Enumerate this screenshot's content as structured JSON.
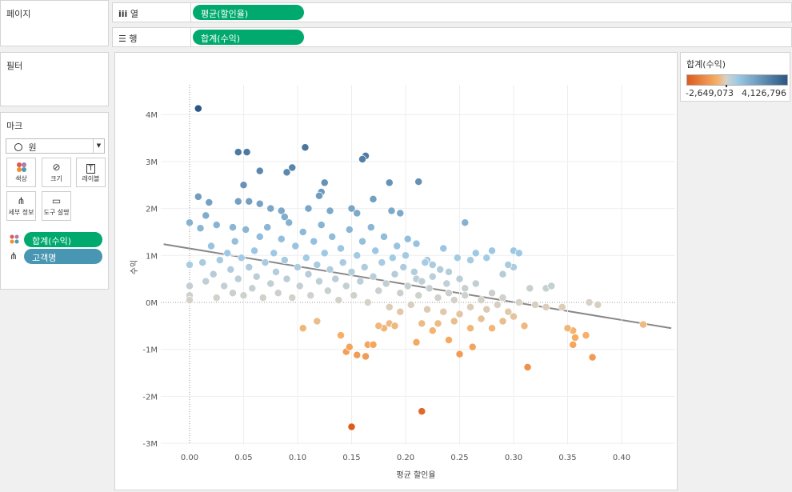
{
  "sidebar": {
    "pages_title": "페이지",
    "filters_title": "필터",
    "marks_title": "마크",
    "mark_type": "원",
    "mark_buttons": [
      {
        "label": "색상",
        "icon": "color-dots-icon"
      },
      {
        "label": "크기",
        "icon": "size-icon"
      },
      {
        "label": "레이블",
        "icon": "label-icon"
      },
      {
        "label": "세부 정보",
        "icon": "detail-icon"
      },
      {
        "label": "도구 설명",
        "icon": "tooltip-icon"
      }
    ],
    "mark_fields": [
      {
        "label": "합계(수익)",
        "icon": "color-dots-icon"
      },
      {
        "label": "고객명",
        "icon": "detail-icon"
      }
    ]
  },
  "shelves": {
    "columns_label": "열",
    "columns_pill": "평균(할인율)",
    "rows_label": "행",
    "rows_pill": "합계(수익)"
  },
  "legend": {
    "title": "합계(수익)",
    "min_label": "-2,649,073",
    "max_label": "4,126,796",
    "colors": {
      "negative": "#de5a1e",
      "mid_negative": "#f7b066",
      "zero": "#d6d2c8",
      "mid_positive": "#9fcae6",
      "positive": "#2a5783"
    }
  },
  "chart_data": {
    "type": "scatter",
    "xlabel": "평균 할인율",
    "ylabel": "수익",
    "xlim": [
      -0.025,
      0.445
    ],
    "ylim": [
      -3.1,
      4.5
    ],
    "x_ticks": [
      "0.00",
      "0.05",
      "0.10",
      "0.15",
      "0.20",
      "0.25",
      "0.30",
      "0.35",
      "0.40"
    ],
    "y_ticks": [
      "4M",
      "3M",
      "2M",
      "1M",
      "0M",
      "-1M",
      "-2M",
      "-3M"
    ],
    "y_unit": "M",
    "grid": true,
    "trend_line": {
      "x": [
        -0.024,
        0.446
      ],
      "y": [
        1.24,
        -0.55
      ]
    },
    "points": [
      [
        0.008,
        4.13
      ],
      [
        0.045,
        3.2
      ],
      [
        0.053,
        3.2
      ],
      [
        0.107,
        3.3
      ],
      [
        0.163,
        3.12
      ],
      [
        0.16,
        3.05
      ],
      [
        0.065,
        2.8
      ],
      [
        0.095,
        2.87
      ],
      [
        0.09,
        2.77
      ],
      [
        0.185,
        2.55
      ],
      [
        0.212,
        2.57
      ],
      [
        0.125,
        2.55
      ],
      [
        0.122,
        2.35
      ],
      [
        0.12,
        2.27
      ],
      [
        0.05,
        2.5
      ],
      [
        0.008,
        2.25
      ],
      [
        0.018,
        2.13
      ],
      [
        0.045,
        2.15
      ],
      [
        0.055,
        2.15
      ],
      [
        0.065,
        2.1
      ],
      [
        0.075,
        2.0
      ],
      [
        0.085,
        1.95
      ],
      [
        0.088,
        1.82
      ],
      [
        0.015,
        1.85
      ],
      [
        0.025,
        1.65
      ],
      [
        0.04,
        1.6
      ],
      [
        0.11,
        2.0
      ],
      [
        0.13,
        1.95
      ],
      [
        0.15,
        2.0
      ],
      [
        0.155,
        1.9
      ],
      [
        0.17,
        2.2
      ],
      [
        0.195,
        1.9
      ],
      [
        0.187,
        1.95
      ],
      [
        0.202,
        1.35
      ],
      [
        0.255,
        1.7
      ],
      [
        0.0,
        1.7
      ],
      [
        0.01,
        1.58
      ],
      [
        0.15,
        -2.65
      ],
      [
        0.215,
        -2.32
      ],
      [
        0.313,
        -1.38
      ],
      [
        0.373,
        -1.17
      ],
      [
        0.155,
        -1.12
      ],
      [
        0.163,
        -1.15
      ],
      [
        0.145,
        -1.05
      ],
      [
        0.148,
        -0.95
      ],
      [
        0.165,
        -0.9
      ],
      [
        0.17,
        -0.9
      ],
      [
        0.14,
        -0.7
      ],
      [
        0.105,
        -0.55
      ],
      [
        0.118,
        -0.4
      ],
      [
        0.21,
        -0.85
      ],
      [
        0.24,
        -0.8
      ],
      [
        0.25,
        -1.1
      ],
      [
        0.262,
        -0.95
      ],
      [
        0.355,
        -0.9
      ],
      [
        0.357,
        -0.75
      ],
      [
        0.367,
        -0.7
      ],
      [
        0.42,
        -0.47
      ],
      [
        0.355,
        -0.6
      ],
      [
        0.35,
        -0.55
      ],
      [
        0.31,
        -0.5
      ],
      [
        0.3,
        -0.3
      ],
      [
        0.28,
        -0.55
      ],
      [
        0.26,
        -0.55
      ],
      [
        0.23,
        -0.45
      ],
      [
        0.195,
        -0.2
      ],
      [
        0.18,
        -0.55
      ],
      [
        0.175,
        -0.5
      ],
      [
        0.185,
        -0.45
      ],
      [
        0.19,
        -0.5
      ],
      [
        0.215,
        -0.45
      ],
      [
        0.225,
        -0.6
      ],
      [
        0.245,
        -0.4
      ],
      [
        0.27,
        -0.35
      ],
      [
        0.29,
        -0.4
      ],
      [
        0.32,
        -0.05
      ],
      [
        0.345,
        -0.1
      ],
      [
        0.37,
        0.0
      ],
      [
        0.378,
        -0.05
      ],
      [
        0.33,
        -0.1
      ],
      [
        0.305,
        0.0
      ],
      [
        0.33,
        0.3
      ],
      [
        0.335,
        0.35
      ],
      [
        0.315,
        0.3
      ],
      [
        0.29,
        0.6
      ],
      [
        0.3,
        0.75
      ],
      [
        0.28,
        1.1
      ],
      [
        0.3,
        1.1
      ],
      [
        0.305,
        1.05
      ],
      [
        0.265,
        1.05
      ],
      [
        0.26,
        0.9
      ],
      [
        0.275,
        0.95
      ],
      [
        0.295,
        0.8
      ],
      [
        0.24,
        0.65
      ],
      [
        0.25,
        0.5
      ],
      [
        0.255,
        0.3
      ],
      [
        0.235,
        1.15
      ],
      [
        0.22,
        0.9
      ],
      [
        0.225,
        0.8
      ],
      [
        0.21,
        0.5
      ],
      [
        0.0,
        0.8
      ],
      [
        0.0,
        0.35
      ],
      [
        0.0,
        0.15
      ],
      [
        0.0,
        0.05
      ],
      [
        0.012,
        0.85
      ],
      [
        0.015,
        0.45
      ],
      [
        0.02,
        1.2
      ],
      [
        0.022,
        0.6
      ],
      [
        0.025,
        0.1
      ],
      [
        0.028,
        0.9
      ],
      [
        0.032,
        0.35
      ],
      [
        0.035,
        1.05
      ],
      [
        0.038,
        0.7
      ],
      [
        0.04,
        0.2
      ],
      [
        0.042,
        1.3
      ],
      [
        0.045,
        0.5
      ],
      [
        0.048,
        0.95
      ],
      [
        0.05,
        0.15
      ],
      [
        0.052,
        1.55
      ],
      [
        0.055,
        0.75
      ],
      [
        0.058,
        0.3
      ],
      [
        0.06,
        1.1
      ],
      [
        0.062,
        0.55
      ],
      [
        0.065,
        1.4
      ],
      [
        0.068,
        0.1
      ],
      [
        0.07,
        0.85
      ],
      [
        0.072,
        1.6
      ],
      [
        0.075,
        0.4
      ],
      [
        0.078,
        1.05
      ],
      [
        0.08,
        0.65
      ],
      [
        0.082,
        0.2
      ],
      [
        0.085,
        1.35
      ],
      [
        0.088,
        0.9
      ],
      [
        0.09,
        0.5
      ],
      [
        0.092,
        1.7
      ],
      [
        0.095,
        0.1
      ],
      [
        0.098,
        1.2
      ],
      [
        0.1,
        0.75
      ],
      [
        0.102,
        0.35
      ],
      [
        0.105,
        1.5
      ],
      [
        0.108,
        0.95
      ],
      [
        0.11,
        0.6
      ],
      [
        0.112,
        0.15
      ],
      [
        0.115,
        1.3
      ],
      [
        0.118,
        0.8
      ],
      [
        0.12,
        0.45
      ],
      [
        0.122,
        1.65
      ],
      [
        0.125,
        1.05
      ],
      [
        0.128,
        0.25
      ],
      [
        0.13,
        0.7
      ],
      [
        0.132,
        1.4
      ],
      [
        0.135,
        0.5
      ],
      [
        0.138,
        0.05
      ],
      [
        0.14,
        1.15
      ],
      [
        0.142,
        0.85
      ],
      [
        0.145,
        0.35
      ],
      [
        0.148,
        1.55
      ],
      [
        0.15,
        0.65
      ],
      [
        0.152,
        0.15
      ],
      [
        0.155,
        1.0
      ],
      [
        0.158,
        0.45
      ],
      [
        0.16,
        1.3
      ],
      [
        0.162,
        0.75
      ],
      [
        0.165,
        0.0
      ],
      [
        0.168,
        1.6
      ],
      [
        0.17,
        0.55
      ],
      [
        0.172,
        1.1
      ],
      [
        0.175,
        0.25
      ],
      [
        0.178,
        0.85
      ],
      [
        0.18,
        1.4
      ],
      [
        0.182,
        0.4
      ],
      [
        0.185,
        -0.1
      ],
      [
        0.188,
        0.95
      ],
      [
        0.19,
        0.6
      ],
      [
        0.192,
        1.2
      ],
      [
        0.195,
        0.2
      ],
      [
        0.198,
        0.75
      ],
      [
        0.2,
        1.0
      ],
      [
        0.202,
        0.35
      ],
      [
        0.205,
        -0.05
      ],
      [
        0.208,
        0.65
      ],
      [
        0.21,
        1.25
      ],
      [
        0.212,
        0.15
      ],
      [
        0.215,
        0.45
      ],
      [
        0.218,
        0.85
      ],
      [
        0.22,
        -0.15
      ],
      [
        0.222,
        0.3
      ],
      [
        0.225,
        0.55
      ],
      [
        0.23,
        0.1
      ],
      [
        0.232,
        0.7
      ],
      [
        0.235,
        -0.2
      ],
      [
        0.238,
        0.4
      ],
      [
        0.24,
        0.2
      ],
      [
        0.245,
        0.05
      ],
      [
        0.248,
        0.95
      ],
      [
        0.25,
        -0.25
      ],
      [
        0.255,
        0.15
      ],
      [
        0.26,
        -0.1
      ],
      [
        0.265,
        0.4
      ],
      [
        0.27,
        0.05
      ],
      [
        0.275,
        -0.15
      ],
      [
        0.28,
        0.2
      ],
      [
        0.285,
        -0.05
      ],
      [
        0.29,
        0.1
      ],
      [
        0.295,
        -0.2
      ]
    ]
  }
}
